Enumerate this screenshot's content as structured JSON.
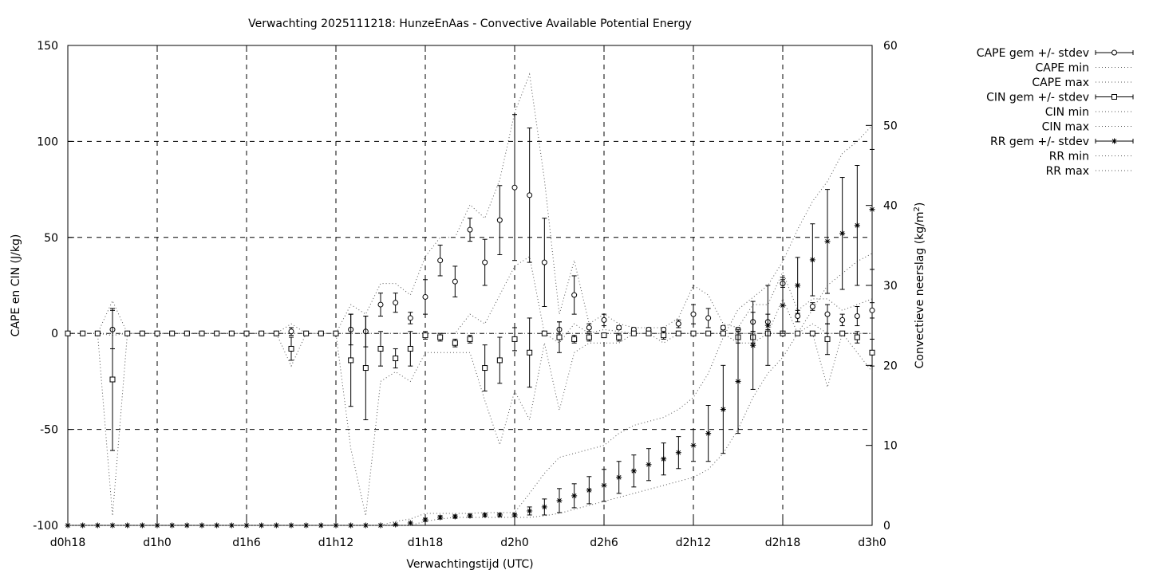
{
  "chart_data": {
    "type": "line",
    "title": "Verwachting 2025111218: HunzeEnAas - Convective Available Potential Energy",
    "xlabel": "Verwachtingstijd (UTC)",
    "ylabel": "CAPE en CIN (J/kg)",
    "y2label": "Convectieve neerslag (kg/m",
    "y2label_sup": "2",
    "y2label_end": ")",
    "xlim": [
      18,
      72
    ],
    "ylim": [
      -100,
      150
    ],
    "y2lim": [
      0,
      60
    ],
    "x_ticks": [
      {
        "v": 18,
        "label": "d0h18"
      },
      {
        "v": 24,
        "label": "d1h0"
      },
      {
        "v": 30,
        "label": "d1h6"
      },
      {
        "v": 36,
        "label": "d1h12"
      },
      {
        "v": 42,
        "label": "d1h18"
      },
      {
        "v": 48,
        "label": "d2h0"
      },
      {
        "v": 54,
        "label": "d2h6"
      },
      {
        "v": 60,
        "label": "d2h12"
      },
      {
        "v": 66,
        "label": "d2h18"
      },
      {
        "v": 72,
        "label": "d3h0"
      }
    ],
    "y_ticks": [
      {
        "v": 150,
        "label": "150"
      },
      {
        "v": 100,
        "label": "100"
      },
      {
        "v": 50,
        "label": "50"
      },
      {
        "v": 0,
        "label": "0"
      },
      {
        "v": -50,
        "label": "-50"
      },
      {
        "v": -100,
        "label": "-100"
      }
    ],
    "y2_ticks": [
      {
        "v": 60,
        "label": "60"
      },
      {
        "v": 50,
        "label": "50"
      },
      {
        "v": 40,
        "label": "40"
      },
      {
        "v": 30,
        "label": "30"
      },
      {
        "v": 20,
        "label": "20"
      },
      {
        "v": 10,
        "label": "10"
      },
      {
        "v": 0,
        "label": "0"
      }
    ],
    "grid": true,
    "legend_position": "top-right, outside plot",
    "x": [
      18,
      19,
      20,
      21,
      22,
      23,
      24,
      25,
      26,
      27,
      28,
      29,
      30,
      31,
      32,
      33,
      34,
      35,
      36,
      37,
      38,
      39,
      40,
      41,
      42,
      43,
      44,
      45,
      46,
      47,
      48,
      49,
      50,
      51,
      52,
      53,
      54,
      55,
      56,
      57,
      58,
      59,
      60,
      61,
      62,
      63,
      64,
      65,
      66,
      67,
      68,
      69,
      70,
      71,
      72
    ],
    "series": [
      {
        "name": "CAPE gem +/- stdev",
        "axis": "y1",
        "marker": "circle",
        "errorbars": true,
        "x": [
          18,
          19,
          20,
          21,
          22,
          23,
          24,
          25,
          26,
          27,
          28,
          29,
          30,
          31,
          32,
          33,
          34,
          35,
          36,
          37,
          38,
          39,
          40,
          41,
          42,
          43,
          44,
          45,
          46,
          47,
          48,
          49,
          50,
          51,
          52,
          53,
          54,
          55,
          56,
          57,
          58,
          59,
          60,
          61,
          62,
          63,
          64,
          65,
          66,
          67,
          68,
          69,
          70,
          71,
          72
        ],
        "mean": [
          0,
          0,
          0,
          2,
          0,
          0,
          0,
          0,
          0,
          0,
          0,
          0,
          0,
          0,
          0,
          1,
          0,
          0,
          0,
          2,
          1,
          15,
          16,
          8,
          19,
          38,
          27,
          54,
          37,
          59,
          76,
          72,
          37,
          2,
          20,
          3,
          7,
          3,
          2,
          2,
          2,
          5,
          10,
          8,
          3,
          2,
          6,
          6,
          26,
          9,
          14,
          10,
          7,
          9,
          12
        ],
        "sd": [
          0,
          0,
          0,
          10,
          0,
          0,
          0,
          0,
          0,
          0,
          0,
          0,
          0,
          0,
          0,
          2,
          0,
          0,
          0,
          8,
          8,
          6,
          5,
          3,
          9,
          8,
          8,
          6,
          12,
          18,
          38,
          35,
          23,
          4,
          10,
          2,
          3,
          1,
          1,
          1,
          1,
          2,
          5,
          5,
          1,
          1,
          5,
          4,
          2,
          3,
          2,
          5,
          3,
          5,
          4
        ]
      },
      {
        "name": "CAPE min",
        "axis": "y1",
        "style": "dotted",
        "x": [
          18,
          19,
          20,
          21,
          22,
          23,
          24,
          25,
          26,
          27,
          28,
          29,
          30,
          31,
          32,
          33,
          34,
          35,
          36,
          37,
          38,
          39,
          40,
          41,
          42,
          43,
          44,
          45,
          46,
          47,
          48,
          49,
          50,
          51,
          52,
          53,
          54,
          55,
          56,
          57,
          58,
          59,
          60,
          61,
          62,
          63,
          64,
          65,
          66,
          67,
          68,
          69,
          70,
          71,
          72
        ],
        "y": [
          0,
          0,
          0,
          -1,
          0,
          0,
          0,
          0,
          0,
          0,
          0,
          0,
          0,
          0,
          0,
          0,
          0,
          0,
          0,
          0,
          0,
          0,
          0,
          0,
          0,
          0,
          0,
          10,
          5,
          20,
          35,
          40,
          0,
          -5,
          5,
          0,
          2,
          1,
          0,
          0,
          0,
          0,
          0,
          0,
          0,
          0,
          0,
          0,
          18,
          0,
          5,
          0,
          0,
          0,
          0
        ]
      },
      {
        "name": "CAPE max",
        "axis": "y1",
        "style": "dotted",
        "x": [
          18,
          19,
          20,
          21,
          22,
          23,
          24,
          25,
          26,
          27,
          28,
          29,
          30,
          31,
          32,
          33,
          34,
          35,
          36,
          37,
          38,
          39,
          40,
          41,
          42,
          43,
          44,
          45,
          46,
          47,
          48,
          49,
          50,
          51,
          52,
          53,
          54,
          55,
          56,
          57,
          58,
          59,
          60,
          61,
          62,
          63,
          64,
          65,
          66,
          67,
          68,
          69,
          70,
          71,
          72
        ],
        "y": [
          0,
          0,
          0,
          17,
          0,
          0,
          0,
          0,
          0,
          0,
          0,
          0,
          0,
          0,
          0,
          5,
          0,
          0,
          0,
          15,
          10,
          26,
          26,
          20,
          40,
          50,
          50,
          67,
          60,
          80,
          115,
          135,
          80,
          10,
          38,
          5,
          10,
          5,
          3,
          3,
          3,
          8,
          25,
          20,
          5,
          3,
          15,
          15,
          32,
          12,
          18,
          18,
          12,
          15,
          18
        ]
      },
      {
        "name": "CIN gem +/- stdev",
        "axis": "y1",
        "marker": "square",
        "errorbars": true,
        "x": [
          18,
          19,
          20,
          21,
          22,
          23,
          24,
          25,
          26,
          27,
          28,
          29,
          30,
          31,
          32,
          33,
          34,
          35,
          36,
          37,
          38,
          39,
          40,
          41,
          42,
          43,
          44,
          45,
          46,
          47,
          48,
          49,
          50,
          51,
          52,
          53,
          54,
          55,
          56,
          57,
          58,
          59,
          60,
          61,
          62,
          63,
          64,
          65,
          66,
          67,
          68,
          69,
          70,
          71,
          72
        ],
        "mean": [
          0,
          0,
          0,
          -24,
          0,
          0,
          0,
          0,
          0,
          0,
          0,
          0,
          0,
          0,
          0,
          -8,
          0,
          0,
          0,
          -14,
          -18,
          -8,
          -13,
          -8,
          -1,
          -2,
          -5,
          -3,
          -18,
          -14,
          -3,
          -10,
          0,
          -2,
          -3,
          -2,
          -1,
          -2,
          0,
          0,
          -1,
          0,
          0,
          0,
          0,
          -2,
          -2,
          0,
          0,
          0,
          0,
          -3,
          0,
          -2,
          -10
        ],
        "sd": [
          0,
          0,
          0,
          37,
          0,
          0,
          0,
          0,
          0,
          0,
          0,
          0,
          0,
          0,
          0,
          6,
          0,
          0,
          0,
          24,
          27,
          9,
          5,
          9,
          2,
          2,
          2,
          2,
          12,
          12,
          6,
          18,
          0,
          8,
          2,
          2,
          1,
          2,
          0,
          0,
          2,
          0,
          0,
          0,
          0,
          3,
          3,
          0,
          0,
          0,
          0,
          8,
          0,
          3,
          7
        ]
      },
      {
        "name": "CIN min",
        "axis": "y1",
        "style": "dotted",
        "x": [
          18,
          19,
          20,
          21,
          22,
          23,
          24,
          25,
          26,
          27,
          28,
          29,
          30,
          31,
          32,
          33,
          34,
          35,
          36,
          37,
          38,
          39,
          40,
          41,
          42,
          43,
          44,
          45,
          46,
          47,
          48,
          49,
          50,
          51,
          52,
          53,
          54,
          55,
          56,
          57,
          58,
          59,
          60,
          61,
          62,
          63,
          64,
          65,
          66,
          67,
          68,
          69,
          70,
          71,
          72
        ],
        "y": [
          0,
          0,
          0,
          -95,
          0,
          0,
          0,
          0,
          0,
          0,
          0,
          0,
          0,
          0,
          0,
          -17,
          0,
          0,
          0,
          -60,
          -95,
          -25,
          -20,
          -25,
          -10,
          -10,
          -10,
          -10,
          -35,
          -58,
          -30,
          -45,
          -5,
          -40,
          -10,
          -5,
          -5,
          -5,
          0,
          0,
          -5,
          0,
          0,
          0,
          0,
          -5,
          -5,
          0,
          0,
          0,
          0,
          -28,
          0,
          -10,
          -20
        ]
      },
      {
        "name": "CIN max",
        "axis": "y1",
        "style": "dotted",
        "x": [
          18,
          19,
          20,
          21,
          22,
          23,
          24,
          25,
          26,
          27,
          28,
          29,
          30,
          31,
          32,
          33,
          34,
          35,
          36,
          37,
          38,
          39,
          40,
          41,
          42,
          43,
          44,
          45,
          46,
          47,
          48,
          49,
          50,
          51,
          52,
          53,
          54,
          55,
          56,
          57,
          58,
          59,
          60,
          61,
          62,
          63,
          64,
          65,
          66,
          67,
          68,
          69,
          70,
          71,
          72
        ],
        "y": [
          0,
          0,
          0,
          0,
          0,
          0,
          0,
          0,
          0,
          0,
          0,
          0,
          0,
          0,
          0,
          0,
          0,
          0,
          0,
          0,
          0,
          0,
          0,
          0,
          0,
          0,
          0,
          0,
          0,
          0,
          0,
          0,
          0,
          0,
          0,
          0,
          0,
          0,
          0,
          0,
          0,
          0,
          0,
          0,
          0,
          0,
          0,
          0,
          0,
          0,
          0,
          0,
          0,
          0,
          0
        ]
      },
      {
        "name": "RR gem +/- stdev",
        "axis": "y2",
        "marker": "star",
        "errorbars": true,
        "x": [
          18,
          19,
          20,
          21,
          22,
          23,
          24,
          25,
          26,
          27,
          28,
          29,
          30,
          31,
          32,
          33,
          34,
          35,
          36,
          37,
          38,
          39,
          40,
          41,
          42,
          43,
          44,
          45,
          46,
          47,
          48,
          49,
          50,
          51,
          52,
          53,
          54,
          55,
          56,
          57,
          58,
          59,
          60,
          61,
          62,
          63,
          64,
          65,
          66,
          67,
          68,
          69,
          70,
          71,
          72
        ],
        "mean": [
          0,
          0,
          0,
          0,
          0,
          0,
          0,
          0,
          0,
          0,
          0,
          0,
          0,
          0,
          0,
          0,
          0,
          0,
          0,
          0,
          0,
          0,
          0.1,
          0.3,
          0.7,
          1.0,
          1.1,
          1.2,
          1.3,
          1.3,
          1.3,
          1.8,
          2.3,
          3.1,
          3.7,
          4.4,
          5.0,
          6.0,
          6.8,
          7.6,
          8.3,
          9.1,
          10.0,
          11.5,
          14.5,
          18.0,
          22.5,
          25.0,
          27.5,
          30.0,
          33.2,
          35.5,
          36.5,
          37.5,
          39.5
        ],
        "sd": [
          0,
          0,
          0,
          0,
          0,
          0,
          0,
          0,
          0,
          0,
          0,
          0,
          0,
          0,
          0,
          0,
          0,
          0,
          0,
          0,
          0,
          0,
          0,
          0,
          0.2,
          0.2,
          0.2,
          0.2,
          0.2,
          0.2,
          0.2,
          0.5,
          1.0,
          1.5,
          1.5,
          1.7,
          2.0,
          2.0,
          2.0,
          2.0,
          2.0,
          2.0,
          2.0,
          3.5,
          5.5,
          6.5,
          5.5,
          5.0,
          3.5,
          3.5,
          4.5,
          6.5,
          7.0,
          7.5,
          7.5
        ]
      },
      {
        "name": "RR min",
        "axis": "y2",
        "style": "dotted",
        "x": [
          18,
          19,
          20,
          21,
          22,
          23,
          24,
          25,
          26,
          27,
          28,
          29,
          30,
          31,
          32,
          33,
          34,
          35,
          36,
          37,
          38,
          39,
          40,
          41,
          42,
          43,
          44,
          45,
          46,
          47,
          48,
          49,
          50,
          51,
          52,
          53,
          54,
          55,
          56,
          57,
          58,
          59,
          60,
          61,
          62,
          63,
          64,
          65,
          66,
          67,
          68,
          69,
          70,
          71,
          72
        ],
        "y": [
          0,
          0,
          0,
          0,
          0,
          0,
          0,
          0,
          0,
          0,
          0,
          0,
          0,
          0,
          0,
          0,
          0,
          0,
          0,
          0,
          0,
          0,
          0,
          0,
          0.5,
          0.8,
          1.0,
          1.0,
          1.0,
          1.0,
          1.0,
          1.0,
          1.2,
          1.5,
          2.0,
          2.5,
          3.0,
          3.5,
          4.0,
          4.5,
          5.0,
          5.5,
          6.0,
          7.0,
          9.0,
          12.0,
          16.0,
          19.0,
          21.0,
          24.0,
          27.0,
          30.0,
          31.5,
          33.0,
          34.0
        ]
      },
      {
        "name": "RR max",
        "axis": "y2",
        "style": "dotted",
        "x": [
          18,
          19,
          20,
          21,
          22,
          23,
          24,
          25,
          26,
          27,
          28,
          29,
          30,
          31,
          32,
          33,
          34,
          35,
          36,
          37,
          38,
          39,
          40,
          41,
          42,
          43,
          44,
          45,
          46,
          47,
          48,
          49,
          50,
          51,
          52,
          53,
          54,
          55,
          56,
          57,
          58,
          59,
          60,
          61,
          62,
          63,
          64,
          65,
          66,
          67,
          68,
          69,
          70,
          71,
          72
        ],
        "y": [
          0,
          0,
          0,
          0,
          0,
          0,
          0,
          0,
          0,
          0,
          0,
          0,
          0,
          0,
          0,
          0,
          0,
          0,
          0,
          0,
          0,
          0,
          0.5,
          0.8,
          1.5,
          1.5,
          1.5,
          1.5,
          1.6,
          1.6,
          1.6,
          4.0,
          6.5,
          8.5,
          9.0,
          9.5,
          10.0,
          11.5,
          12.5,
          13.0,
          13.5,
          14.5,
          16.0,
          19.0,
          23.5,
          27.0,
          28.5,
          30.0,
          33.0,
          37.0,
          40.5,
          43.0,
          46.5,
          48.0,
          50.0
        ]
      }
    ]
  }
}
